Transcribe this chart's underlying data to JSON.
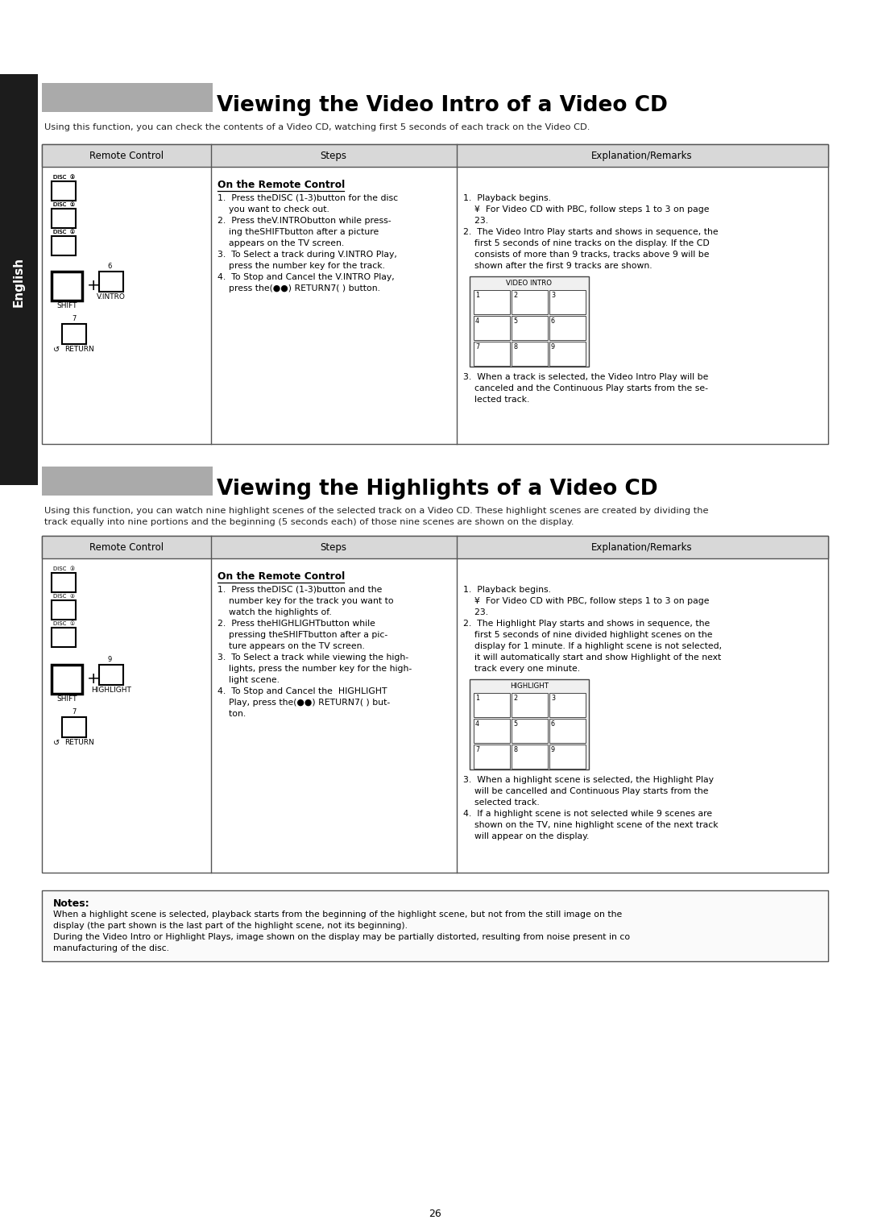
{
  "page_bg": "#ffffff",
  "title1": "Viewing the Video Intro of a Video CD",
  "title2": "Viewing the Highlights of a Video CD",
  "title_bg": "#aaaaaa",
  "sidebar_bg": "#1c1c1c",
  "sidebar_text": "English",
  "header_bg": "#d8d8d8",
  "col_headers": [
    "Remote Control",
    "Steps",
    "Explanation/Remarks"
  ],
  "section1_desc": "Using this function, you can check the contents of a Video CD, watching first 5 seconds of each track on the Video CD.",
  "section2_desc1": "Using this function, you can watch nine highlight scenes of the selected track on a Video CD. These highlight scenes are created by dividing the",
  "section2_desc2": "track equally into nine portions and the beginning (5 seconds each) of those nine scenes are shown on the display.",
  "notes_title": "Notes:",
  "note1a": "When a highlight scene is selected, playback starts from the beginning of the highlight scene, but not from the still image on the",
  "note1b": "display (the part shown is the last part of the highlight scene, not its beginning).",
  "note2a": "During the Video Intro or Highlight Plays, image shown on the display may be partially distorted, resulting from noise present in co",
  "note2b": "manufacturing of the disc.",
  "page_number": "26",
  "disc_labels": [
    "❣",
    "❢",
    "②"
  ],
  "step1_lines": [
    "1.  Press theDISC (1-3)button for the disc",
    "    you want to check out.",
    "2.  Press theV.INTRObutton while press-",
    "    ing theSHIFTbutton after a picture",
    "    appears on the TV screen.",
    "3.  To Select a track during V.INTRO Play,",
    "    press the number key for the track.",
    "4.  To Stop and Cancel the V.INTRO Play,",
    "    press the(●●) RETURN7( ) button."
  ],
  "exp1_lines": [
    "1.  Playback begins.",
    "    ¥  For Video CD with PBC, follow steps 1 to 3 on page",
    "    23.",
    "2.  The Video Intro Play starts and shows in sequence, the",
    "    first 5 seconds of nine tracks on the display. If the CD",
    "    consists of more than 9 tracks, tracks above 9 will be",
    "    shown after the first 9 tracks are shown."
  ],
  "exp1_pt3": [
    "3.  When a track is selected, the Video Intro Play will be",
    "    canceled and the Continuous Play starts from the se-",
    "    lected track."
  ],
  "step2_lines": [
    "1.  Press theDISC (1-3)button and the",
    "    number key for the track you want to",
    "    watch the highlights of.",
    "2.  Press theHIGHLIGHTbutton while",
    "    pressing theSHIFTbutton after a pic-",
    "    ture appears on the TV screen.",
    "3.  To Select a track while viewing the high-",
    "    lights, press the number key for the high-",
    "    light scene.",
    "4.  To Stop and Cancel the  HIGHLIGHT",
    "    Play, press the(●●) RETURN7( ) but-",
    "    ton."
  ],
  "exp2_lines": [
    "1.  Playback begins.",
    "    ¥  For Video CD with PBC, follow steps 1 to 3 on page",
    "    23.",
    "2.  The Highlight Play starts and shows in sequence, the",
    "    first 5 seconds of nine divided highlight scenes on the",
    "    display for 1 minute. If a highlight scene is not selected,",
    "    it will automatically start and show Highlight of the next",
    "    track every one minute."
  ],
  "exp2_extra": [
    "3.  When a highlight scene is selected, the Highlight Play",
    "    will be cancelled and Continuous Play starts from the",
    "    selected track.",
    "4.  If a highlight scene is not selected while 9 scenes are",
    "    shown on the TV, nine highlight scene of the next track",
    "    will appear on the display."
  ]
}
